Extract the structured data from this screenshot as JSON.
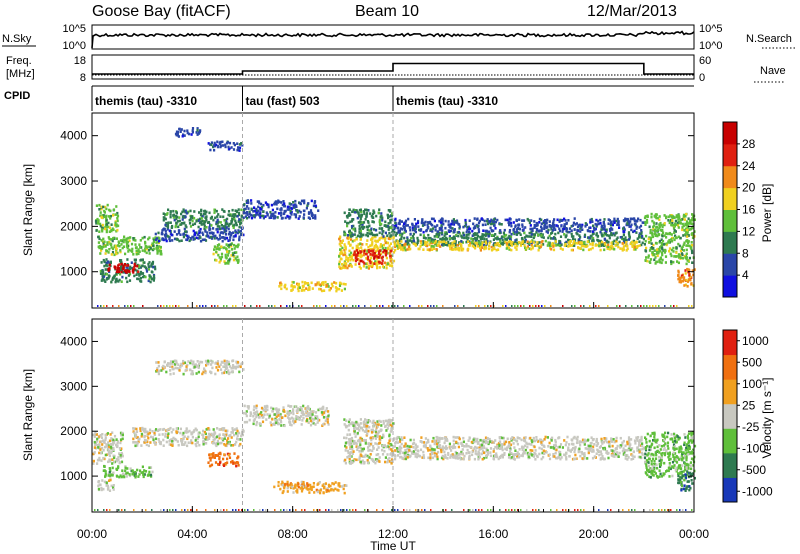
{
  "header": {
    "station": "Goose Bay (fitACF)",
    "beam": "Beam 10",
    "date": "12/Mar/2013"
  },
  "param_panel": {
    "nsky_label": "N.Sky",
    "nsearch_label": "N.Search",
    "freq_label_1": "Freq.",
    "freq_label_2": "[MHz]",
    "nave_label": "Nave",
    "cpid_label": "CPID",
    "noise_left_ticks": [
      "10^5",
      "10^0"
    ],
    "noise_right_ticks": [
      "10^5",
      "10^0"
    ],
    "freq_ticks": [
      "18",
      "8"
    ],
    "nave_ticks": [
      "60",
      "0"
    ],
    "cpid_segments": [
      {
        "label": "themis (tau) -3310",
        "start_hr": 0,
        "end_hr": 6
      },
      {
        "label": "tau (fast) 503",
        "start_hr": 6,
        "end_hr": 12
      },
      {
        "label": "themis (tau) -3310",
        "start_hr": 12,
        "end_hr": 24
      }
    ],
    "nave_steps": [
      {
        "start_hr": 0,
        "end_hr": 6,
        "value": 10
      },
      {
        "start_hr": 6,
        "end_hr": 12,
        "value": 20
      },
      {
        "start_hr": 12,
        "end_hr": 22,
        "value": 45
      },
      {
        "start_hr": 22,
        "end_hr": 24,
        "value": 10
      }
    ]
  },
  "x_axis": {
    "label": "Time UT",
    "ticks": [
      "00:00",
      "04:00",
      "08:00",
      "12:00",
      "16:00",
      "20:00",
      "00:00"
    ]
  },
  "y_axis": {
    "label": "Slant Range [km]",
    "ticks": [
      "1000",
      "2000",
      "3000",
      "4000"
    ]
  },
  "power_colorbar": {
    "label": "Power [dB]",
    "ticks": [
      "4",
      "8",
      "12",
      "16",
      "20",
      "24",
      "28"
    ],
    "colors": [
      "#1010e0",
      "#2a46a8",
      "#2e7a50",
      "#5fbf3a",
      "#f0d020",
      "#f08a1a",
      "#e02010",
      "#c80000"
    ]
  },
  "velocity_colorbar": {
    "label": "Velocity [m s⁻¹]",
    "ticks": [
      "1000",
      "500",
      "100",
      "25",
      "-25",
      "-100",
      "-500",
      "-1000"
    ],
    "colors": [
      "#1838b8",
      "#2e7a50",
      "#5fbf3a",
      "#c8c8c0",
      "#f0a020",
      "#f07010",
      "#e02010"
    ]
  },
  "chart_data": [
    {
      "type": "heatmap",
      "name": "power",
      "x_unit": "hours UT",
      "xlim": [
        0,
        24
      ],
      "ylim": [
        200,
        4500
      ],
      "regions": [
        {
          "x": [
            0.1,
            1.0
          ],
          "y": [
            1900,
            2500
          ],
          "level": 3
        },
        {
          "x": [
            0.2,
            2.8
          ],
          "y": [
            1400,
            1800
          ],
          "level": 3
        },
        {
          "x": [
            0.3,
            2.5
          ],
          "y": [
            800,
            1300
          ],
          "level": 2
        },
        {
          "x": [
            0.6,
            1.9
          ],
          "y": [
            1000,
            1200
          ],
          "level": 7
        },
        {
          "x": [
            2.5,
            6.0
          ],
          "y": [
            1700,
            2000
          ],
          "level": 1
        },
        {
          "x": [
            2.8,
            6.0
          ],
          "y": [
            2000,
            2400
          ],
          "level": 2
        },
        {
          "x": [
            4.6,
            6.0
          ],
          "y": [
            3700,
            3900
          ],
          "level": 1
        },
        {
          "x": [
            3.3,
            4.3
          ],
          "y": [
            4000,
            4200
          ],
          "level": 1
        },
        {
          "x": [
            4.8,
            5.8
          ],
          "y": [
            1200,
            1650
          ],
          "level": 3
        },
        {
          "x": [
            6.0,
            9.0
          ],
          "y": [
            2200,
            2600
          ],
          "level": 1
        },
        {
          "x": [
            7.4,
            10.2
          ],
          "y": [
            600,
            800
          ],
          "level": 4
        },
        {
          "x": [
            9.8,
            12.0
          ],
          "y": [
            1100,
            1800
          ],
          "level": 4
        },
        {
          "x": [
            10.4,
            11.9
          ],
          "y": [
            1200,
            1500
          ],
          "level": 6
        },
        {
          "x": [
            10.0,
            12.0
          ],
          "y": [
            1800,
            2400
          ],
          "level": 2
        },
        {
          "x": [
            12.0,
            22.0
          ],
          "y": [
            1600,
            1900
          ],
          "level": 2
        },
        {
          "x": [
            12.0,
            21.8
          ],
          "y": [
            1500,
            1700
          ],
          "level": 4
        },
        {
          "x": [
            12.0,
            22.0
          ],
          "y": [
            1900,
            2200
          ],
          "level": 1
        },
        {
          "x": [
            22.0,
            24.0
          ],
          "y": [
            1200,
            2300
          ],
          "level": 3
        },
        {
          "x": [
            23.3,
            24.0
          ],
          "y": [
            700,
            1100
          ],
          "level": 5
        }
      ]
    },
    {
      "type": "heatmap",
      "name": "velocity",
      "x_unit": "hours UT",
      "xlim": [
        0,
        24
      ],
      "ylim": [
        200,
        4500
      ],
      "regions": [
        {
          "x": [
            0.0,
            1.2
          ],
          "y": [
            1300,
            2000
          ],
          "level": 3
        },
        {
          "x": [
            0.4,
            2.4
          ],
          "y": [
            1000,
            1250
          ],
          "level": 2
        },
        {
          "x": [
            0.2,
            0.9
          ],
          "y": [
            700,
            950
          ],
          "level": 3
        },
        {
          "x": [
            1.6,
            6.0
          ],
          "y": [
            1700,
            2100
          ],
          "level": 3
        },
        {
          "x": [
            4.6,
            5.8
          ],
          "y": [
            1250,
            1550
          ],
          "level": 5
        },
        {
          "x": [
            2.5,
            6.0
          ],
          "y": [
            3300,
            3600
          ],
          "level": 3
        },
        {
          "x": [
            6.0,
            9.4
          ],
          "y": [
            2150,
            2600
          ],
          "level": 3
        },
        {
          "x": [
            7.2,
            10.1
          ],
          "y": [
            650,
            900
          ],
          "level": 4
        },
        {
          "x": [
            10.0,
            12.0
          ],
          "y": [
            1300,
            2300
          ],
          "level": 3
        },
        {
          "x": [
            12.0,
            22.0
          ],
          "y": [
            1400,
            1900
          ],
          "level": 3
        },
        {
          "x": [
            22.0,
            24.0
          ],
          "y": [
            1000,
            2000
          ],
          "level": 2
        },
        {
          "x": [
            23.3,
            24.0
          ],
          "y": [
            700,
            1100
          ],
          "level": 1
        }
      ]
    }
  ]
}
